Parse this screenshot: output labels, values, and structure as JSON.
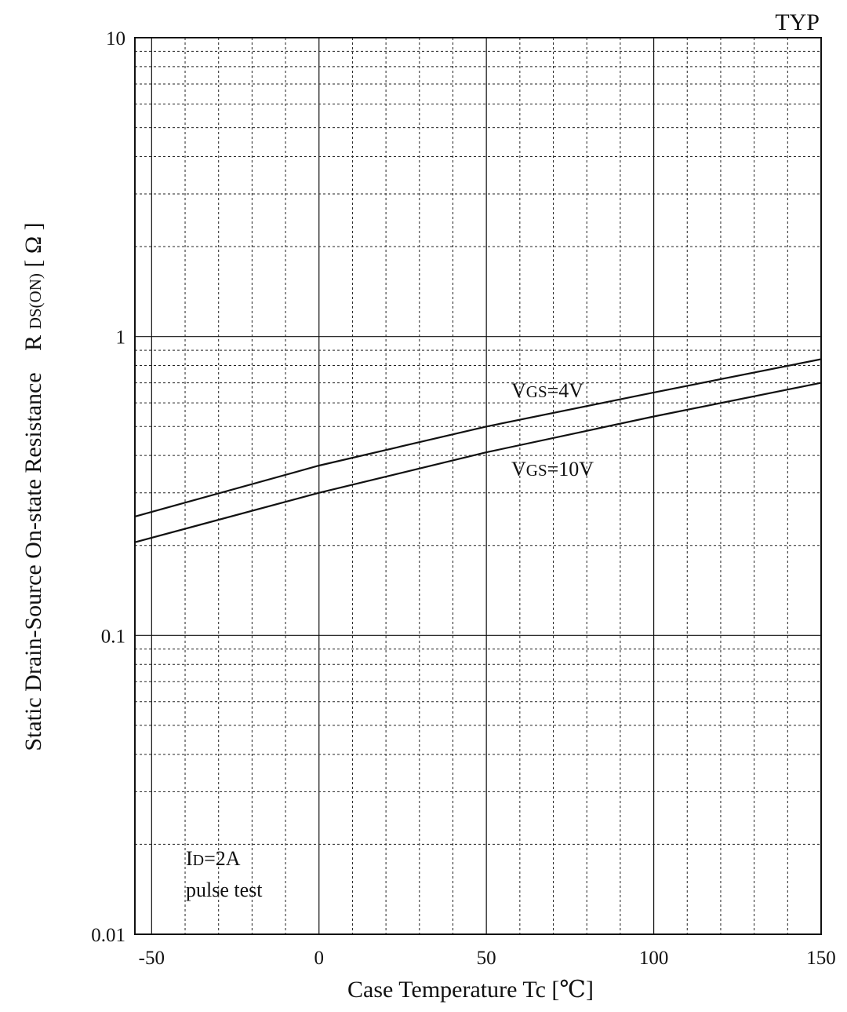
{
  "chart_data": {
    "type": "line",
    "title": "TYP",
    "xlabel": "Case Temperature  Tc  [℃]",
    "ylabel": "Static Drain-Source On-state Resistance  RDS(ON)[ Ω ]",
    "ylabel_parts": {
      "main": "Static Drain-Source On-state Resistance",
      "symbol_R": "R",
      "symbol_sub": "DS(ON)",
      "unit": "[ Ω ]"
    },
    "x_scale": "linear",
    "y_scale": "log",
    "xlim": [
      -55,
      150
    ],
    "ylim": [
      0.01,
      10
    ],
    "x_ticks": [
      -50,
      0,
      50,
      100,
      150
    ],
    "x_tick_labels": [
      "-50",
      "0",
      "50",
      "100",
      "150"
    ],
    "y_ticks": [
      0.01,
      0.1,
      1,
      10
    ],
    "y_tick_labels": [
      "0.01",
      "0.1",
      "1",
      "10"
    ],
    "grid": true,
    "series": [
      {
        "name": "VGS=4V",
        "label_V": "V",
        "label_sub": "GS",
        "label_rest": "=4V",
        "x": [
          -55,
          0,
          50,
          100,
          150
        ],
        "y": [
          0.25,
          0.37,
          0.5,
          0.65,
          0.84
        ]
      },
      {
        "name": "VGS=10V",
        "label_V": "V",
        "label_sub": "GS",
        "label_rest": "=10V",
        "x": [
          -55,
          0,
          50,
          100,
          150
        ],
        "y": [
          0.205,
          0.3,
          0.41,
          0.54,
          0.7
        ]
      }
    ],
    "annotations": [
      {
        "main": "I",
        "sub": "D",
        "rest": "=2A"
      },
      {
        "main": "pulse test",
        "sub": "",
        "rest": ""
      }
    ],
    "colors": {
      "line": "#111111",
      "background": "#ffffff"
    }
  }
}
